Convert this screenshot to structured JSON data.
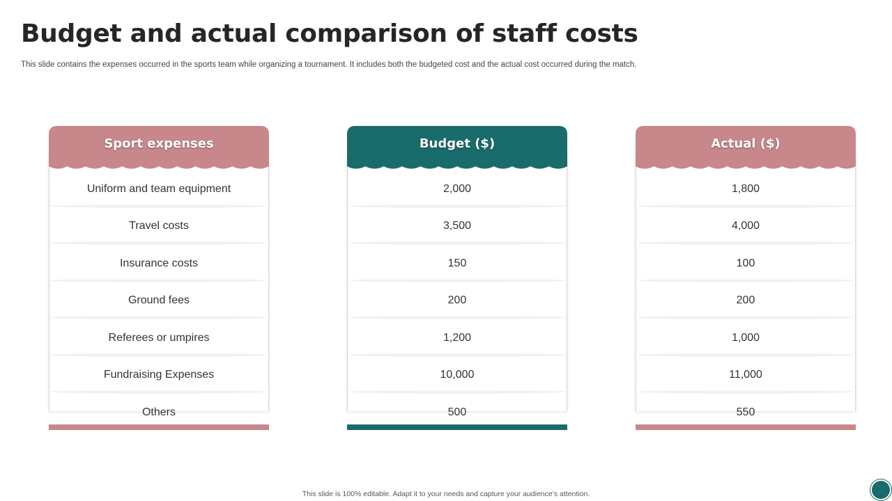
{
  "slide": {
    "title": "Budget and actual comparison of staff costs",
    "subtitle": "This slide contains the expenses occurred in the sports team while organizing a tournament. It includes both the budgeted cost and the actual cost occurred during the match.",
    "footer": "This slide is 100% editable.  Adapt it to your needs and capture your audience’s attention."
  },
  "colors": {
    "rose": "#c8878a",
    "teal": "#1a6b6b"
  },
  "table": {
    "columns": [
      {
        "header": "Sport expenses",
        "color": "rose",
        "cells": [
          "Uniform and team equipment",
          "Travel costs",
          "Insurance  costs",
          "Ground fees",
          "Referees or umpires",
          "Fundraising Expenses",
          "Others"
        ]
      },
      {
        "header": "Budget ($)",
        "color": "teal",
        "cells": [
          "2,000",
          "3,500",
          "150",
          "200",
          "1,200",
          "10,000",
          "500"
        ]
      },
      {
        "header": "Actual  ($)",
        "color": "rose",
        "cells": [
          "1,800",
          "4,000",
          "100",
          "200",
          "1,000",
          "11,000",
          "550"
        ]
      }
    ]
  }
}
